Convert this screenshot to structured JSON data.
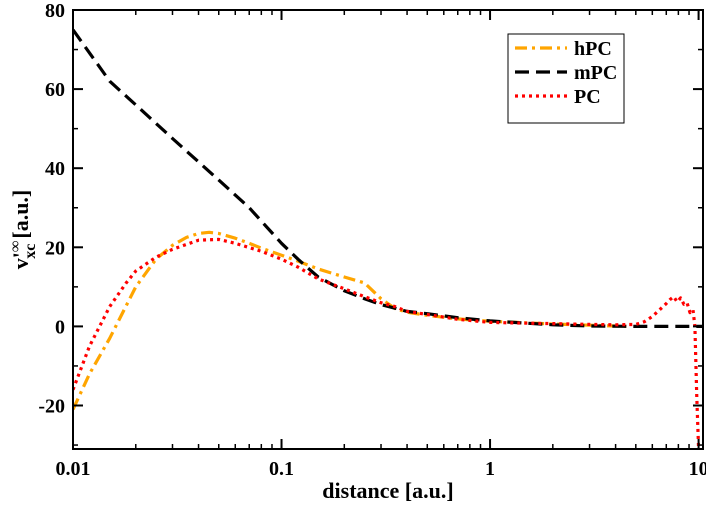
{
  "chart_data": {
    "type": "line",
    "xscale": "log",
    "xlim": [
      0.01,
      10.5
    ],
    "ylim": [
      -31,
      80
    ],
    "xlabel": "distance [a.u.]",
    "ylabel": {
      "base": "v",
      "prime": "'",
      "superscript": "∞",
      "subscript": "xc",
      "unit": "[a.u.]"
    },
    "x_ticks": [
      {
        "value": 0.01,
        "label": "0.01"
      },
      {
        "value": 0.1,
        "label": "0.1"
      },
      {
        "value": 1,
        "label": "1"
      },
      {
        "value": 10,
        "label": "10"
      }
    ],
    "y_ticks": [
      {
        "value": -20,
        "label": "-20"
      },
      {
        "value": 0,
        "label": "0"
      },
      {
        "value": 20,
        "label": "20"
      },
      {
        "value": 40,
        "label": "40"
      },
      {
        "value": 60,
        "label": "60"
      },
      {
        "value": 80,
        "label": "80"
      }
    ],
    "legend_position": "top-right",
    "series": [
      {
        "name": "hPC",
        "color": "#ffa500",
        "style": "dash-dot",
        "x": [
          0.01,
          0.012,
          0.015,
          0.02,
          0.025,
          0.03,
          0.035,
          0.04,
          0.045,
          0.05,
          0.06,
          0.07,
          0.08,
          0.1,
          0.12,
          0.15,
          0.2,
          0.25,
          0.3,
          0.35,
          0.4,
          0.5,
          0.7,
          1.0,
          1.5,
          2.0,
          3.0,
          4.0,
          4.5
        ],
        "y": [
          -21,
          -12,
          -3,
          10,
          17,
          20.5,
          22.5,
          23.5,
          23.8,
          23.5,
          22.3,
          21,
          19.8,
          18,
          16.5,
          14.5,
          12.5,
          11,
          7,
          4.5,
          3.6,
          2.8,
          1.9,
          1.3,
          0.9,
          0.6,
          0.3,
          0.1,
          0
        ]
      },
      {
        "name": "mPC",
        "color": "#000000",
        "style": "dash",
        "x": [
          0.01,
          0.015,
          0.02,
          0.03,
          0.05,
          0.07,
          0.1,
          0.12,
          0.15,
          0.2,
          0.25,
          0.3,
          0.4,
          0.5,
          0.7,
          1.0,
          1.5,
          2.0,
          3.0,
          5.0,
          7.0,
          10.5
        ],
        "y": [
          75,
          62,
          56,
          47.5,
          37,
          30,
          21,
          17,
          12.5,
          9,
          7,
          5.5,
          3.8,
          3.2,
          2.2,
          1.4,
          0.8,
          0.4,
          0.1,
          0,
          0,
          0
        ]
      },
      {
        "name": "PC",
        "color": "#ff0000",
        "style": "dot",
        "x": [
          0.01,
          0.012,
          0.015,
          0.018,
          0.02,
          0.025,
          0.03,
          0.04,
          0.05,
          0.06,
          0.08,
          0.1,
          0.12,
          0.15,
          0.2,
          0.25,
          0.3,
          0.35,
          0.4,
          0.5,
          0.7,
          1.0,
          1.5,
          2.0,
          3.0,
          4.0,
          5.0,
          5.5,
          6.0,
          6.5,
          7.0,
          7.3,
          7.6,
          7.9,
          8.2,
          8.5,
          8.8,
          9.1,
          9.4,
          9.6,
          9.8,
          10.0
        ],
        "y": [
          -16,
          -5,
          5,
          11,
          14,
          17.5,
          19.5,
          21.8,
          22,
          21,
          19,
          17,
          15,
          12,
          9.5,
          7.5,
          6,
          5,
          3.8,
          3.0,
          1.8,
          1.0,
          0.8,
          0.7,
          0.5,
          0.4,
          0.5,
          1.2,
          2.5,
          4.2,
          5.8,
          6.8,
          7.5,
          6.2,
          7.2,
          5.6,
          6.0,
          3.5,
          4.2,
          0,
          -18,
          -31
        ]
      }
    ]
  }
}
